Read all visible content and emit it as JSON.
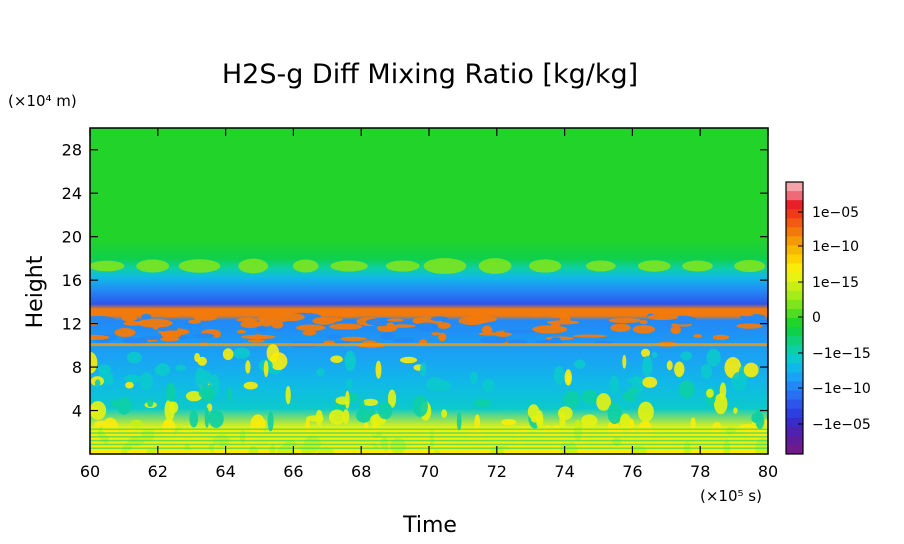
{
  "chart_data": {
    "type": "heatmap",
    "title": "H2S-g Diff Mixing Ratio [kg/kg]",
    "xlabel": "Time",
    "ylabel": "Height",
    "x_unit": "(×10⁵ s)",
    "y_unit": "(×10⁴ m)",
    "xlim": [
      60,
      80
    ],
    "ylim": [
      0,
      30
    ],
    "x_ticks": [
      60,
      62,
      64,
      66,
      68,
      70,
      72,
      74,
      76,
      78,
      80
    ],
    "y_ticks": [
      4,
      8,
      12,
      16,
      20,
      24,
      28
    ],
    "x_tick_labels": [
      "60",
      "62",
      "64",
      "66",
      "68",
      "70",
      "72",
      "74",
      "76",
      "78",
      "80"
    ],
    "y_tick_labels": [
      "4",
      "8",
      "12",
      "16",
      "20",
      "24",
      "28"
    ],
    "colorbar": {
      "labels": [
        "1e−05",
        "1e−10",
        "1e−15",
        "0",
        "−1e−15",
        "−1e−10",
        "−1e−05"
      ],
      "colors_top_to_bottom": [
        "#f4a3a8",
        "#ef6a78",
        "#e8202a",
        "#ee3a1a",
        "#f05a14",
        "#f27a0c",
        "#f49a06",
        "#f7b800",
        "#fcd300",
        "#faec0a",
        "#e6f20f",
        "#c8ef14",
        "#a6eb1a",
        "#7de41d",
        "#4fdc22",
        "#22d32a",
        "#10d04a",
        "#0fd078",
        "#0dcfa5",
        "#0bc9cc",
        "#10b8e8",
        "#1aa2f4",
        "#2388f6",
        "#2a6ef2",
        "#2d55ea",
        "#2e3fe0",
        "#3a2bc8",
        "#4d22b0",
        "#5e1e9b",
        "#6f1b8a"
      ]
    },
    "bands": [
      {
        "z_range": [
          17,
          30
        ],
        "sign": "positive/near-zero",
        "color": "#22d32a"
      },
      {
        "z_range": [
          13.5,
          17
        ],
        "sign": "negative, decreasing",
        "color": "#2388f6"
      },
      {
        "z_range": [
          13.2,
          13.8
        ],
        "sign": "positive max",
        "color": "#f27a0c"
      },
      {
        "z_range": [
          9.5,
          13.2
        ],
        "sign": "mixed orange/blue",
        "color": "#1aa2f4"
      },
      {
        "z_range": [
          0,
          9.5
        ],
        "sign": "negative small, cyan/yellow patches",
        "color": "#0bc9cc"
      }
    ]
  }
}
